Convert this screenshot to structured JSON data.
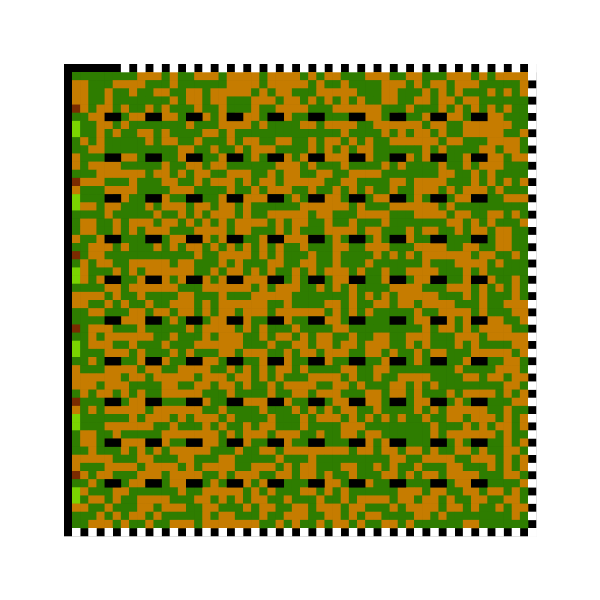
{
  "pattern": {
    "rows": 56,
    "cols": 56,
    "seed": 20240611,
    "palette": {
      "background": "#ffffff",
      "frame": "#000000",
      "green": "#2e7d00",
      "orange": "#c67c00",
      "dark_red": "#7a2a00",
      "lime": "#7ad400",
      "marker": "#000000",
      "timing_light": "#ffffff"
    },
    "orange_ratio": 0.5,
    "marker_pitch": {
      "rows": 5,
      "cols": 5
    },
    "marker_length_cells": 2
  }
}
